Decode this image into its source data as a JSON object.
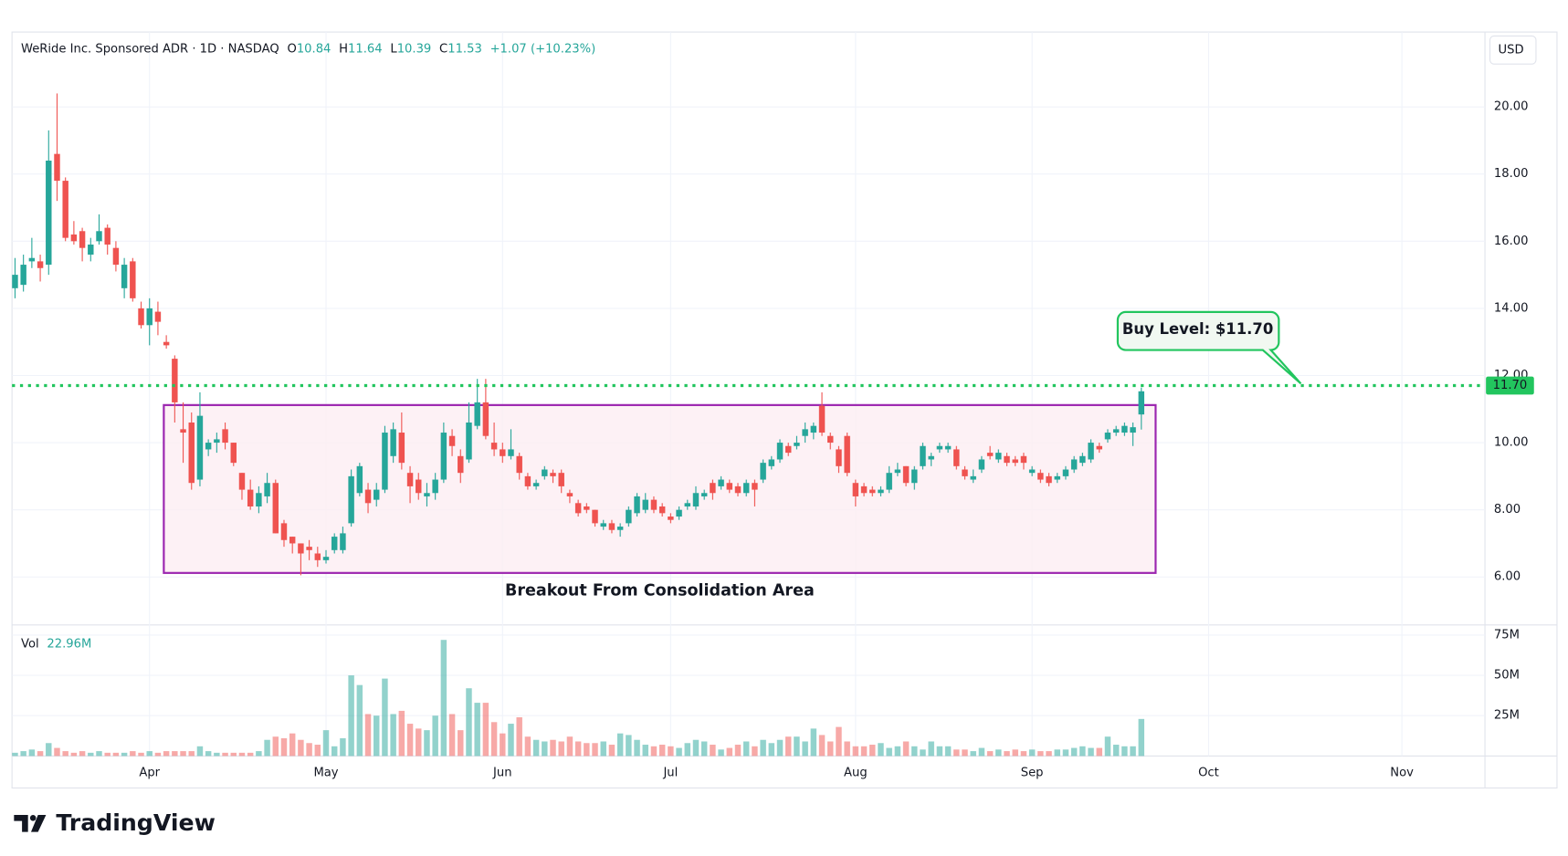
{
  "chart_data": {
    "type": "candlestick",
    "header": {
      "title": "WeRide Inc. Sponsored ADR · 1D · NASDAQ",
      "o_label": "O",
      "h_label": "H",
      "l_label": "L",
      "c_label": "C",
      "change": "+1.07 (+10.23%)"
    },
    "currency": "USD",
    "open": [
      14.6,
      14.7,
      15.4,
      15.4,
      15.3,
      18.6,
      17.8,
      16.2,
      16.3,
      15.6,
      16.0,
      16.4,
      15.8,
      14.6,
      15.4,
      14.0,
      13.5,
      13.9,
      13.0,
      12.5,
      10.4,
      10.6,
      8.9,
      9.8,
      10.0,
      10.4,
      10.0,
      9.1,
      8.6,
      8.1,
      8.4,
      8.8,
      7.6,
      7.2,
      7.0,
      6.9,
      6.7,
      6.5,
      6.8,
      6.8,
      7.6,
      8.5,
      8.6,
      8.3,
      8.6,
      9.6,
      10.3,
      9.1,
      8.9,
      8.4,
      8.5,
      8.9,
      10.2,
      9.6,
      9.5,
      10.5,
      11.2,
      10.0,
      9.8,
      9.6,
      9.6,
      9.0,
      8.7,
      9.0,
      9.1,
      9.1,
      8.5,
      8.2,
      8.1,
      8.0,
      7.5,
      7.6,
      7.4,
      7.6,
      7.9,
      8.0,
      8.3,
      8.1,
      7.8,
      7.8,
      8.1,
      8.1,
      8.4,
      8.8,
      8.7,
      8.8,
      8.7,
      8.5,
      8.8,
      8.9,
      9.3,
      9.5,
      9.9,
      9.9,
      10.2,
      10.3,
      11.1,
      10.2,
      9.8,
      10.2,
      8.8,
      8.7,
      8.6,
      8.5,
      8.6,
      9.1,
      9.3,
      8.8,
      9.3,
      9.5,
      9.8,
      9.8,
      9.8,
      9.2,
      8.9,
      9.2,
      9.7,
      9.5,
      9.6,
      9.5,
      9.6,
      9.1,
      9.1,
      9.0,
      8.9,
      9.0,
      9.2,
      9.4,
      9.5,
      9.9,
      10.1,
      10.3,
      10.3,
      10.3,
      10.84
    ],
    "high": [
      15.5,
      15.6,
      16.1,
      15.6,
      19.3,
      20.4,
      17.9,
      16.6,
      16.4,
      16.1,
      16.8,
      16.5,
      16.0,
      15.5,
      15.5,
      14.2,
      14.3,
      14.2,
      13.2,
      12.6,
      11.2,
      10.9,
      11.5,
      10.1,
      10.3,
      10.6,
      10.0,
      9.1,
      8.9,
      8.7,
      9.1,
      8.9,
      7.7,
      7.2,
      7.0,
      7.1,
      6.9,
      6.8,
      7.3,
      7.5,
      9.2,
      9.4,
      8.8,
      8.8,
      10.5,
      10.6,
      10.9,
      9.3,
      9.1,
      8.8,
      9.1,
      10.6,
      10.4,
      9.8,
      11.2,
      11.9,
      11.9,
      10.6,
      10.0,
      10.4,
      9.7,
      9.1,
      8.9,
      9.3,
      9.2,
      9.2,
      8.6,
      8.3,
      8.2,
      8.0,
      7.7,
      7.7,
      7.6,
      8.1,
      8.5,
      8.5,
      8.4,
      8.2,
      7.9,
      8.1,
      8.3,
      8.7,
      8.6,
      8.9,
      9.0,
      8.9,
      8.8,
      8.9,
      8.9,
      9.5,
      9.6,
      10.1,
      10.0,
      10.2,
      10.6,
      10.6,
      11.5,
      10.3,
      9.9,
      10.3,
      8.9,
      8.8,
      8.7,
      8.7,
      9.3,
      9.4,
      9.3,
      9.3,
      10.0,
      9.7,
      10.0,
      10.0,
      9.9,
      9.3,
      9.2,
      9.6,
      9.9,
      9.8,
      9.7,
      9.6,
      9.7,
      9.3,
      9.2,
      9.1,
      9.1,
      9.3,
      9.6,
      9.7,
      10.1,
      10.0,
      10.4,
      10.5,
      10.6,
      10.6,
      11.64
    ],
    "low": [
      14.3,
      14.5,
      15.2,
      14.8,
      15.0,
      17.2,
      16.0,
      15.9,
      15.4,
      15.4,
      15.9,
      15.6,
      15.1,
      14.3,
      14.2,
      13.4,
      12.9,
      13.2,
      12.8,
      10.6,
      9.4,
      8.6,
      8.7,
      9.6,
      9.7,
      9.8,
      9.3,
      8.3,
      8.0,
      7.9,
      8.2,
      7.3,
      6.9,
      6.7,
      6.05,
      6.5,
      6.3,
      6.4,
      6.7,
      6.7,
      7.5,
      8.4,
      7.9,
      8.1,
      8.5,
      9.4,
      9.2,
      8.2,
      8.3,
      8.1,
      8.3,
      8.8,
      9.6,
      8.8,
      9.4,
      10.4,
      10.1,
      9.6,
      9.4,
      9.5,
      8.9,
      8.6,
      8.6,
      8.9,
      8.8,
      8.5,
      8.2,
      7.8,
      7.9,
      7.5,
      7.4,
      7.3,
      7.2,
      7.5,
      7.8,
      7.9,
      7.9,
      7.8,
      7.6,
      7.7,
      8.0,
      8.0,
      8.3,
      8.3,
      8.6,
      8.5,
      8.4,
      8.4,
      8.1,
      8.8,
      9.2,
      9.4,
      9.6,
      9.8,
      10.0,
      10.1,
      10.2,
      9.8,
      9.1,
      9.0,
      8.1,
      8.4,
      8.4,
      8.4,
      8.5,
      9.0,
      8.7,
      8.6,
      9.2,
      9.3,
      9.7,
      9.7,
      9.2,
      8.9,
      8.8,
      9.1,
      9.5,
      9.4,
      9.3,
      9.3,
      9.2,
      9.0,
      8.8,
      8.7,
      8.8,
      8.9,
      9.1,
      9.3,
      9.4,
      9.7,
      10.0,
      10.2,
      10.2,
      9.9,
      10.39
    ],
    "close": [
      15.0,
      15.3,
      15.5,
      15.2,
      18.4,
      17.8,
      16.1,
      16.0,
      15.8,
      15.9,
      16.3,
      15.9,
      15.3,
      15.3,
      14.3,
      13.5,
      14.0,
      13.6,
      12.9,
      11.2,
      10.3,
      8.8,
      10.8,
      10.0,
      10.1,
      10.0,
      9.4,
      8.6,
      8.1,
      8.5,
      8.8,
      7.3,
      7.1,
      7.0,
      6.7,
      6.8,
      6.5,
      6.6,
      7.2,
      7.3,
      9.0,
      9.3,
      8.2,
      8.6,
      10.3,
      10.4,
      9.4,
      8.7,
      8.5,
      8.5,
      8.9,
      10.3,
      9.9,
      9.1,
      10.6,
      11.2,
      10.2,
      9.8,
      9.6,
      9.8,
      9.1,
      8.7,
      8.8,
      9.2,
      9.0,
      8.7,
      8.4,
      7.9,
      8.0,
      7.6,
      7.6,
      7.4,
      7.5,
      8.0,
      8.4,
      8.3,
      8.0,
      7.9,
      7.7,
      8.0,
      8.2,
      8.5,
      8.5,
      8.5,
      8.9,
      8.6,
      8.5,
      8.8,
      8.6,
      9.4,
      9.5,
      10.0,
      9.7,
      10.0,
      10.4,
      10.5,
      10.3,
      10.0,
      9.3,
      9.1,
      8.4,
      8.5,
      8.5,
      8.6,
      9.1,
      9.2,
      8.8,
      9.2,
      9.9,
      9.6,
      9.9,
      9.9,
      9.3,
      9.0,
      9.0,
      9.5,
      9.6,
      9.7,
      9.4,
      9.4,
      9.4,
      9.2,
      8.9,
      8.8,
      9.0,
      9.2,
      9.5,
      9.6,
      10.0,
      9.8,
      10.3,
      10.4,
      10.5,
      10.46,
      11.53
    ],
    "volume": [
      2,
      3,
      4,
      3,
      8,
      5,
      3,
      2,
      3,
      2,
      3,
      2,
      2,
      2,
      3,
      2,
      3,
      2,
      3,
      3,
      3,
      3,
      6,
      3,
      2,
      2,
      2,
      2,
      2,
      3,
      10,
      12,
      11,
      14,
      10,
      8,
      7,
      16,
      6,
      11,
      50,
      44,
      26,
      25,
      48,
      26,
      28,
      20,
      17,
      16,
      25,
      72,
      26,
      16,
      42,
      33,
      33,
      21,
      14,
      20,
      24,
      12,
      10,
      9,
      10,
      9,
      12,
      9,
      8,
      8,
      9,
      7,
      14,
      13,
      10,
      7,
      6,
      7,
      6,
      5,
      8,
      10,
      9,
      7,
      4,
      5,
      7,
      9,
      6,
      10,
      8,
      10,
      12,
      12,
      9,
      17,
      13,
      9,
      18,
      9,
      6,
      6,
      7,
      8,
      5,
      6,
      9,
      6,
      4,
      9,
      6,
      6,
      4,
      4,
      3,
      5,
      3,
      4,
      3,
      4,
      3,
      4,
      3,
      3,
      4,
      4,
      5,
      6,
      5,
      5,
      12,
      7,
      6,
      6,
      22.96
    ],
    "volume_label": "Vol",
    "volume_value_label": "22.96M",
    "colors": {
      "up": "#26a69a",
      "down": "#ef5350"
    },
    "xlim": [
      -0.36,
      174.88
    ],
    "xticks": [
      {
        "value": 16,
        "label": "Apr"
      },
      {
        "value": 37,
        "label": "May"
      },
      {
        "value": 58,
        "label": "Jun"
      },
      {
        "value": 78,
        "label": "Jul"
      },
      {
        "value": 100,
        "label": "Aug"
      },
      {
        "value": 121,
        "label": "Sep"
      },
      {
        "value": 142,
        "label": "Oct"
      },
      {
        "value": 165,
        "label": "Nov"
      }
    ],
    "ylim": [
      4.57,
      22.23
    ],
    "yticks": [
      {
        "value": 6,
        "label": "6.00"
      },
      {
        "value": 8,
        "label": "8.00"
      },
      {
        "value": 10,
        "label": "10.00"
      },
      {
        "value": 12,
        "label": "12.00"
      },
      {
        "value": 14,
        "label": "14.00"
      },
      {
        "value": 16,
        "label": "16.00"
      },
      {
        "value": 18,
        "label": "18.00"
      },
      {
        "value": 20,
        "label": "20.00"
      }
    ],
    "vlim": [
      0,
      81.25
    ],
    "vticks": [
      {
        "value": 25,
        "label": "25M"
      },
      {
        "value": 50,
        "label": "50M"
      },
      {
        "value": 75,
        "label": "75M"
      }
    ],
    "grid": true,
    "buy_level": {
      "value": 11.7,
      "label": "11.70",
      "color": "#22c55e"
    },
    "callout": "Buy Level: $11.70",
    "box": {
      "x": [
        17.7,
        135.7
      ],
      "y": [
        6.12,
        11.12
      ],
      "label": "Breakout From Consolidation Area",
      "color": "#9c27b0"
    },
    "brand": "TradingView"
  }
}
